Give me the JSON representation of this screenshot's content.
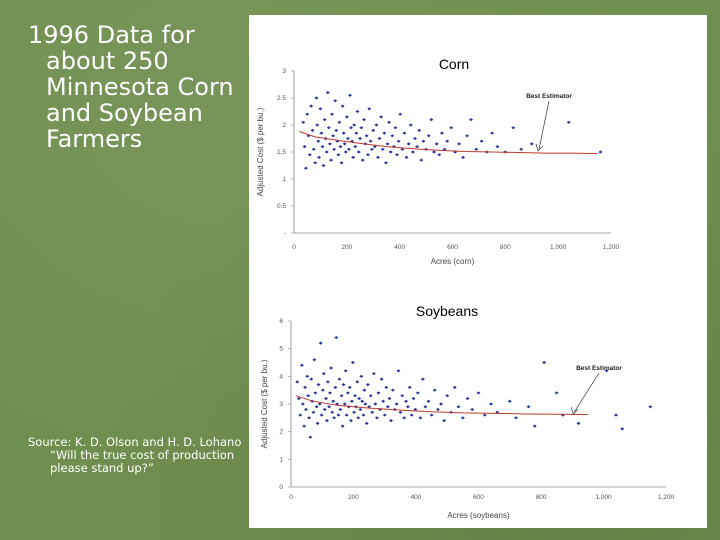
{
  "slide": {
    "title": "1996 Data for about 250 Minnesota Corn and Soybean Farmers",
    "source": "Source: K. D. Olson and H. D. Lohano “Will the true cost of production please stand up?”",
    "background_color": "#6f8f4f",
    "text_color": "#ffffff"
  },
  "chart_data": [
    {
      "type": "scatter",
      "title": "Corn",
      "xlabel": "Acres (corn)",
      "ylabel": "Adjusted Cost ($ per bu.)",
      "xlim": [
        0,
        1200
      ],
      "ylim": [
        0,
        3
      ],
      "x_ticks": [
        0,
        200,
        400,
        600,
        800,
        1000,
        1200
      ],
      "x_tick_labels": [
        "0",
        "200",
        "400",
        "600",
        "800",
        "1,000",
        "1,200"
      ],
      "y_ticks": [
        0,
        0.5,
        1,
        1.5,
        2,
        2.5,
        3
      ],
      "y_tick_labels": [
        "-",
        "0.5",
        "1",
        "1.5",
        "2",
        "2.5",
        "3"
      ],
      "point_color": "#2b3a9a",
      "line_color": "#c0392b",
      "annotation": {
        "text": "Best Estimator",
        "arrow_to": [
          920,
          1.5
        ]
      },
      "best_estimator": [
        [
          20,
          1.88
        ],
        [
          80,
          1.78
        ],
        [
          160,
          1.72
        ],
        [
          250,
          1.66
        ],
        [
          350,
          1.6
        ],
        [
          450,
          1.56
        ],
        [
          550,
          1.53
        ],
        [
          650,
          1.51
        ],
        [
          750,
          1.5
        ],
        [
          850,
          1.49
        ],
        [
          950,
          1.48
        ],
        [
          1050,
          1.48
        ],
        [
          1150,
          1.47
        ]
      ],
      "points": [
        [
          35,
          2.05
        ],
        [
          40,
          1.6
        ],
        [
          45,
          1.2
        ],
        [
          50,
          2.2
        ],
        [
          55,
          1.8
        ],
        [
          60,
          1.45
        ],
        [
          65,
          2.35
        ],
        [
          70,
          1.9
        ],
        [
          75,
          1.55
        ],
        [
          80,
          1.3
        ],
        [
          85,
          2.5
        ],
        [
          88,
          2.0
        ],
        [
          92,
          1.7
        ],
        [
          95,
          1.4
        ],
        [
          100,
          2.3
        ],
        [
          104,
          1.85
        ],
        [
          108,
          1.6
        ],
        [
          112,
          1.25
        ],
        [
          116,
          2.1
        ],
        [
          120,
          1.75
        ],
        [
          124,
          1.5
        ],
        [
          128,
          2.6
        ],
        [
          132,
          1.95
        ],
        [
          136,
          1.65
        ],
        [
          140,
          1.35
        ],
        [
          144,
          2.2
        ],
        [
          148,
          1.8
        ],
        [
          152,
          1.55
        ],
        [
          156,
          2.45
        ],
        [
          160,
          1.9
        ],
        [
          164,
          1.7
        ],
        [
          168,
          1.45
        ],
        [
          172,
          2.05
        ],
        [
          176,
          1.6
        ],
        [
          180,
          1.3
        ],
        [
          184,
          2.35
        ],
        [
          188,
          1.85
        ],
        [
          192,
          1.65
        ],
        [
          196,
          1.5
        ],
        [
          200,
          2.15
        ],
        [
          204,
          1.75
        ],
        [
          208,
          1.55
        ],
        [
          212,
          2.55
        ],
        [
          216,
          1.95
        ],
        [
          220,
          1.7
        ],
        [
          224,
          1.4
        ],
        [
          228,
          2.0
        ],
        [
          232,
          1.6
        ],
        [
          236,
          1.85
        ],
        [
          240,
          2.25
        ],
        [
          245,
          1.5
        ],
        [
          250,
          1.75
        ],
        [
          255,
          1.95
        ],
        [
          260,
          1.35
        ],
        [
          265,
          2.1
        ],
        [
          270,
          1.65
        ],
        [
          275,
          1.8
        ],
        [
          280,
          1.45
        ],
        [
          285,
          2.3
        ],
        [
          290,
          1.7
        ],
        [
          295,
          1.55
        ],
        [
          300,
          1.9
        ],
        [
          306,
          1.6
        ],
        [
          312,
          2.0
        ],
        [
          318,
          1.4
        ],
        [
          324,
          1.75
        ],
        [
          330,
          2.15
        ],
        [
          336,
          1.55
        ],
        [
          342,
          1.85
        ],
        [
          348,
          1.3
        ],
        [
          354,
          1.65
        ],
        [
          360,
          2.05
        ],
        [
          366,
          1.5
        ],
        [
          372,
          1.8
        ],
        [
          378,
          1.6
        ],
        [
          384,
          1.95
        ],
        [
          390,
          1.45
        ],
        [
          396,
          1.7
        ],
        [
          402,
          2.2
        ],
        [
          410,
          1.55
        ],
        [
          418,
          1.85
        ],
        [
          426,
          1.4
        ],
        [
          434,
          1.65
        ],
        [
          442,
          2.0
        ],
        [
          450,
          1.5
        ],
        [
          458,
          1.75
        ],
        [
          466,
          1.6
        ],
        [
          474,
          1.9
        ],
        [
          482,
          1.35
        ],
        [
          490,
          1.7
        ],
        [
          500,
          1.55
        ],
        [
          510,
          1.8
        ],
        [
          520,
          2.1
        ],
        [
          530,
          1.5
        ],
        [
          540,
          1.65
        ],
        [
          550,
          1.45
        ],
        [
          560,
          1.85
        ],
        [
          570,
          1.55
        ],
        [
          580,
          1.7
        ],
        [
          595,
          1.95
        ],
        [
          610,
          1.5
        ],
        [
          625,
          1.65
        ],
        [
          640,
          1.4
        ],
        [
          655,
          1.8
        ],
        [
          670,
          2.1
        ],
        [
          690,
          1.55
        ],
        [
          710,
          1.7
        ],
        [
          730,
          1.5
        ],
        [
          750,
          1.85
        ],
        [
          770,
          1.6
        ],
        [
          800,
          1.5
        ],
        [
          830,
          1.95
        ],
        [
          860,
          1.55
        ],
        [
          900,
          1.65
        ],
        [
          1040,
          2.05
        ],
        [
          1160,
          1.5
        ]
      ]
    },
    {
      "type": "scatter",
      "title": "Soybeans",
      "xlabel": "Acres (soybeans)",
      "ylabel": "Adjusted Cost ($ per bu.)",
      "xlim": [
        0,
        1200
      ],
      "ylim": [
        0,
        6
      ],
      "x_ticks": [
        0,
        200,
        400,
        600,
        800,
        1000,
        1200
      ],
      "x_tick_labels": [
        "0",
        "200",
        "400",
        "600",
        "800",
        "1,000",
        "1,200"
      ],
      "y_ticks": [
        0,
        1,
        2,
        3,
        4,
        5,
        6
      ],
      "y_tick_labels": [
        "0",
        "1",
        "2",
        "3",
        "4",
        "5",
        "6"
      ],
      "point_color": "#2b3a9a",
      "line_color": "#c0392b",
      "annotation": {
        "text": "Best Estimator",
        "arrow_to": [
          900,
          2.6
        ]
      },
      "best_estimator": [
        [
          15,
          3.3
        ],
        [
          70,
          3.1
        ],
        [
          150,
          2.95
        ],
        [
          250,
          2.85
        ],
        [
          350,
          2.78
        ],
        [
          450,
          2.72
        ],
        [
          550,
          2.68
        ],
        [
          650,
          2.66
        ],
        [
          750,
          2.64
        ],
        [
          850,
          2.63
        ],
        [
          950,
          2.62
        ]
      ],
      "points": [
        [
          20,
          3.8
        ],
        [
          25,
          3.2
        ],
        [
          30,
          2.6
        ],
        [
          35,
          4.4
        ],
        [
          38,
          3.0
        ],
        [
          42,
          2.2
        ],
        [
          45,
          3.6
        ],
        [
          48,
          2.8
        ],
        [
          52,
          4.0
        ],
        [
          55,
          3.3
        ],
        [
          58,
          2.5
        ],
        [
          62,
          1.8
        ],
        [
          65,
          3.9
        ],
        [
          68,
          3.1
        ],
        [
          72,
          2.7
        ],
        [
          75,
          4.6
        ],
        [
          78,
          3.4
        ],
        [
          82,
          2.9
        ],
        [
          85,
          2.3
        ],
        [
          88,
          3.7
        ],
        [
          92,
          3.0
        ],
        [
          95,
          5.2
        ],
        [
          98,
          2.6
        ],
        [
          102,
          3.5
        ],
        [
          105,
          4.1
        ],
        [
          108,
          2.8
        ],
        [
          112,
          3.2
        ],
        [
          115,
          2.4
        ],
        [
          118,
          3.8
        ],
        [
          122,
          2.9
        ],
        [
          125,
          3.4
        ],
        [
          128,
          4.3
        ],
        [
          132,
          2.7
        ],
        [
          135,
          3.1
        ],
        [
          138,
          2.5
        ],
        [
          142,
          3.6
        ],
        [
          145,
          5.4
        ],
        [
          148,
          3.0
        ],
        [
          152,
          2.6
        ],
        [
          155,
          3.9
        ],
        [
          158,
          2.8
        ],
        [
          162,
          3.3
        ],
        [
          165,
          2.2
        ],
        [
          168,
          3.7
        ],
        [
          172,
          3.0
        ],
        [
          175,
          4.2
        ],
        [
          178,
          2.6
        ],
        [
          182,
          3.4
        ],
        [
          185,
          2.9
        ],
        [
          188,
          3.6
        ],
        [
          192,
          2.4
        ],
        [
          195,
          3.1
        ],
        [
          198,
          4.5
        ],
        [
          202,
          2.7
        ],
        [
          205,
          3.3
        ],
        [
          208,
          2.9
        ],
        [
          212,
          3.8
        ],
        [
          215,
          2.5
        ],
        [
          218,
          3.2
        ],
        [
          222,
          2.8
        ],
        [
          225,
          4.0
        ],
        [
          228,
          3.1
        ],
        [
          232,
          2.6
        ],
        [
          235,
          3.5
        ],
        [
          238,
          3.0
        ],
        [
          242,
          2.3
        ],
        [
          246,
          3.7
        ],
        [
          250,
          2.9
        ],
        [
          255,
          3.3
        ],
        [
          260,
          2.7
        ],
        [
          265,
          4.1
        ],
        [
          270,
          3.0
        ],
        [
          275,
          2.5
        ],
        [
          280,
          3.4
        ],
        [
          285,
          2.8
        ],
        [
          290,
          3.9
        ],
        [
          295,
          3.1
        ],
        [
          300,
          2.6
        ],
        [
          305,
          3.6
        ],
        [
          310,
          2.9
        ],
        [
          315,
          3.2
        ],
        [
          320,
          2.4
        ],
        [
          326,
          3.5
        ],
        [
          332,
          2.8
        ],
        [
          338,
          3.0
        ],
        [
          344,
          4.2
        ],
        [
          350,
          2.7
        ],
        [
          356,
          3.3
        ],
        [
          362,
          2.5
        ],
        [
          368,
          3.1
        ],
        [
          374,
          2.9
        ],
        [
          380,
          3.6
        ],
        [
          386,
          2.6
        ],
        [
          392,
          3.2
        ],
        [
          398,
          2.8
        ],
        [
          406,
          3.4
        ],
        [
          414,
          2.5
        ],
        [
          422,
          3.9
        ],
        [
          430,
          2.9
        ],
        [
          440,
          3.1
        ],
        [
          450,
          2.6
        ],
        [
          460,
          3.5
        ],
        [
          470,
          2.8
        ],
        [
          480,
          3.0
        ],
        [
          490,
          2.4
        ],
        [
          500,
          3.3
        ],
        [
          512,
          2.7
        ],
        [
          524,
          3.6
        ],
        [
          536,
          2.9
        ],
        [
          550,
          2.5
        ],
        [
          565,
          3.2
        ],
        [
          580,
          2.8
        ],
        [
          600,
          3.4
        ],
        [
          620,
          2.6
        ],
        [
          640,
          3.0
        ],
        [
          660,
          2.7
        ],
        [
          700,
          3.1
        ],
        [
          720,
          2.5
        ],
        [
          760,
          2.9
        ],
        [
          780,
          2.2
        ],
        [
          810,
          4.5
        ],
        [
          850,
          3.4
        ],
        [
          870,
          2.6
        ],
        [
          920,
          2.3
        ],
        [
          1010,
          4.2
        ],
        [
          1040,
          2.6
        ],
        [
          1060,
          2.1
        ],
        [
          1150,
          2.9
        ]
      ]
    }
  ]
}
